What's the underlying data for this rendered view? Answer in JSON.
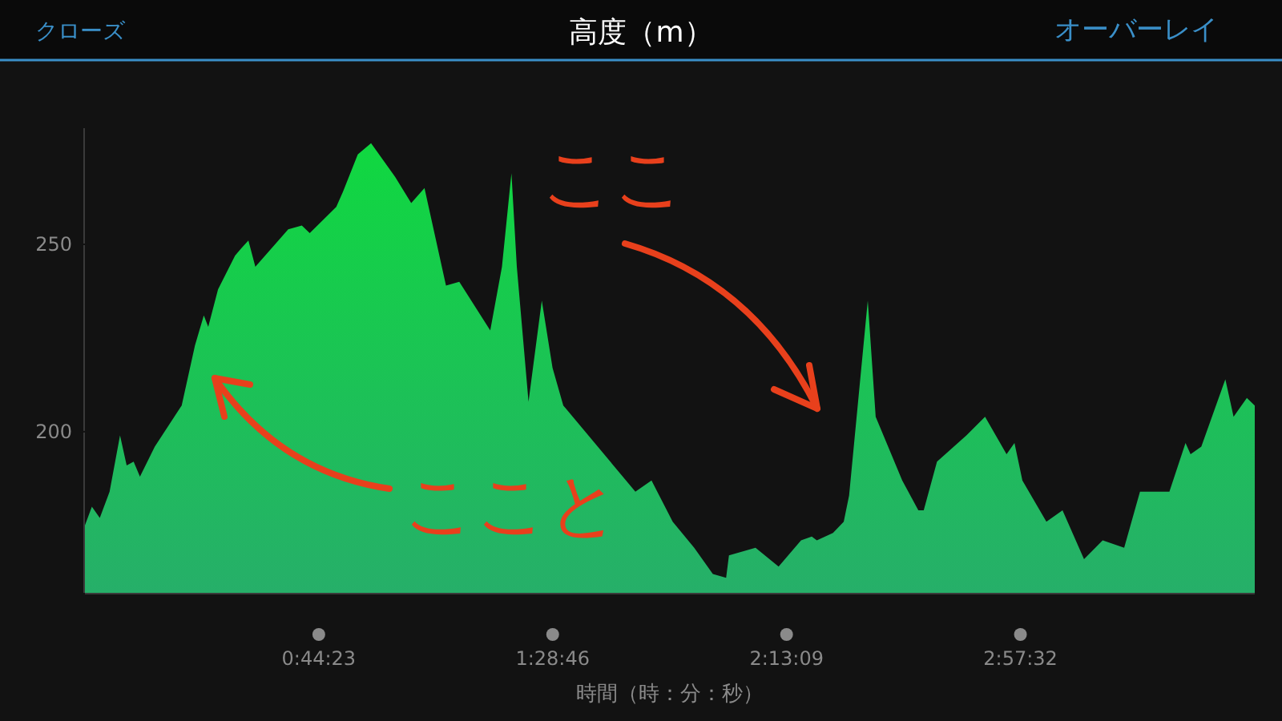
{
  "chart_data": {
    "type": "area",
    "title": "高度（m）",
    "xlabel": "時間（時：分：秒）",
    "annotations": [
      "クローズ",
      "オーバーレイ",
      "ここ",
      "ここと"
    ],
    "xlim": [
      0,
      3.7
    ],
    "ylim": [
      157,
      281
    ],
    "yticks": [
      200,
      250
    ],
    "xticks": [
      {
        "value": 0.7397,
        "label": "0:44:23"
      },
      {
        "value": 1.4794,
        "label": "1:28:46"
      },
      {
        "value": 2.2192,
        "label": "2:13:09"
      },
      {
        "value": 2.9589,
        "label": "2:57:32"
      }
    ],
    "grid": false,
    "series": [
      {
        "color": "#10d840",
        "x": [
          0,
          0.022,
          0.047,
          0.078,
          0.111,
          0.132,
          0.154,
          0.174,
          0.221,
          0.306,
          0.348,
          0.376,
          0.39,
          0.421,
          0.475,
          0.495,
          0.517,
          0.539,
          0.643,
          0.686,
          0.711,
          0.795,
          0.816,
          0.863,
          0.905,
          0.981,
          1.032,
          1.074,
          1.142,
          1.184,
          1.282,
          1.319,
          1.349,
          1.366,
          1.403,
          1.445,
          1.479,
          1.513,
          1.741,
          1.792,
          1.859,
          1.927,
          1.986,
          2.028,
          2.037,
          2.121,
          2.194,
          2.265,
          2.299,
          2.315,
          2.366,
          2.4,
          2.417,
          2.476,
          2.501,
          2.585,
          2.636,
          2.653,
          2.695,
          2.788,
          2.847,
          2.915,
          2.94,
          2.965,
          3.041,
          3.092,
          3.16,
          3.219,
          3.287,
          3.337,
          3.43,
          3.481,
          3.497,
          3.531,
          3.607,
          3.633,
          3.675,
          3.7
        ],
        "values": [
          175,
          180,
          177,
          184,
          199,
          191,
          192,
          188,
          196,
          207,
          223,
          231,
          228,
          238,
          247,
          249,
          251,
          244,
          254,
          255,
          253,
          260,
          264,
          274,
          277,
          268,
          261,
          265,
          239,
          240,
          227,
          244,
          269,
          244,
          208,
          235,
          217,
          207,
          184,
          187,
          176,
          169,
          162,
          161,
          167,
          169,
          164,
          171,
          172,
          171,
          173,
          176,
          183,
          235,
          204,
          187,
          179,
          179,
          192,
          199,
          204,
          194,
          197,
          187,
          176,
          179,
          166,
          171,
          169,
          184,
          184,
          197,
          194,
          196,
          214,
          204,
          209,
          207
        ]
      }
    ]
  }
}
